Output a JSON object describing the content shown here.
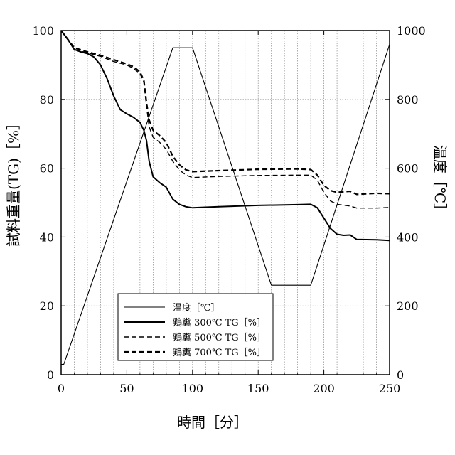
{
  "chart_data": {
    "type": "line",
    "xlabel": "時間［分］",
    "ylabel_left": "試料重量(TG)［%］",
    "ylabel_right": "温度［℃］",
    "xlim": [
      0,
      250
    ],
    "ylim_left": [
      0,
      100
    ],
    "ylim_right": [
      0,
      1000
    ],
    "x_ticks": [
      0,
      50,
      100,
      150,
      200,
      250
    ],
    "y_ticks_left": [
      0,
      20,
      40,
      60,
      80,
      100
    ],
    "y_ticks_right": [
      0,
      200,
      400,
      600,
      800,
      1000
    ],
    "grid": true,
    "legend_position": "bottom-left",
    "series": [
      {
        "name": "温度［℃］",
        "axis": "right",
        "style": "thin-solid",
        "points": [
          [
            0,
            30
          ],
          [
            2,
            30
          ],
          [
            85,
            950
          ],
          [
            100,
            950
          ],
          [
            160,
            260
          ],
          [
            190,
            260
          ],
          [
            250,
            960
          ]
        ]
      },
      {
        "name": "鶏糞 300℃ TG［%］",
        "axis": "left",
        "style": "thick-solid",
        "points": [
          [
            0,
            100
          ],
          [
            5,
            97.5
          ],
          [
            10,
            94.5
          ],
          [
            15,
            93.8
          ],
          [
            20,
            93.3
          ],
          [
            25,
            92.3
          ],
          [
            30,
            90
          ],
          [
            35,
            86
          ],
          [
            40,
            81
          ],
          [
            45,
            77
          ],
          [
            50,
            75.8
          ],
          [
            55,
            74.8
          ],
          [
            60,
            73.3
          ],
          [
            63,
            71
          ],
          [
            65,
            68
          ],
          [
            67,
            62
          ],
          [
            70,
            57.5
          ],
          [
            75,
            55.8
          ],
          [
            80,
            54.5
          ],
          [
            85,
            51
          ],
          [
            90,
            49.5
          ],
          [
            95,
            48.8
          ],
          [
            100,
            48.5
          ],
          [
            120,
            48.8
          ],
          [
            150,
            49.2
          ],
          [
            180,
            49.4
          ],
          [
            190,
            49.5
          ],
          [
            195,
            48.5
          ],
          [
            200,
            45.5
          ],
          [
            205,
            42.5
          ],
          [
            210,
            40.8
          ],
          [
            215,
            40.5
          ],
          [
            220,
            40.6
          ],
          [
            225,
            39.3
          ],
          [
            240,
            39.2
          ],
          [
            250,
            39
          ]
        ]
      },
      {
        "name": "鶏糞 500℃ TG［%］",
        "axis": "left",
        "style": "thin-dashed",
        "points": [
          [
            0,
            100
          ],
          [
            5,
            97.5
          ],
          [
            10,
            94.5
          ],
          [
            20,
            93.5
          ],
          [
            30,
            92.5
          ],
          [
            40,
            91
          ],
          [
            50,
            90
          ],
          [
            55,
            89
          ],
          [
            60,
            87.5
          ],
          [
            63,
            85
          ],
          [
            65,
            78
          ],
          [
            67,
            72
          ],
          [
            70,
            69
          ],
          [
            75,
            67.5
          ],
          [
            80,
            65.5
          ],
          [
            85,
            62
          ],
          [
            90,
            59.5
          ],
          [
            95,
            58
          ],
          [
            100,
            57.3
          ],
          [
            120,
            57.6
          ],
          [
            150,
            57.9
          ],
          [
            180,
            58
          ],
          [
            190,
            58
          ],
          [
            195,
            56.5
          ],
          [
            200,
            53
          ],
          [
            205,
            50.5
          ],
          [
            210,
            49.5
          ],
          [
            220,
            49
          ],
          [
            225,
            48.4
          ],
          [
            240,
            48.4
          ],
          [
            250,
            48.6
          ]
        ]
      },
      {
        "name": "鶏糞 700℃ TG［%］",
        "axis": "left",
        "style": "thick-dashed",
        "points": [
          [
            0,
            100
          ],
          [
            5,
            97.5
          ],
          [
            10,
            95
          ],
          [
            20,
            93.8
          ],
          [
            30,
            92.8
          ],
          [
            40,
            91.5
          ],
          [
            50,
            90.3
          ],
          [
            55,
            89.5
          ],
          [
            60,
            88
          ],
          [
            63,
            85.5
          ],
          [
            65,
            79
          ],
          [
            67,
            74
          ],
          [
            70,
            71
          ],
          [
            75,
            69.5
          ],
          [
            80,
            67.5
          ],
          [
            85,
            63.5
          ],
          [
            90,
            61
          ],
          [
            95,
            59.5
          ],
          [
            100,
            59
          ],
          [
            120,
            59.3
          ],
          [
            150,
            59.7
          ],
          [
            180,
            59.8
          ],
          [
            190,
            59.6
          ],
          [
            195,
            58
          ],
          [
            200,
            55
          ],
          [
            205,
            53.5
          ],
          [
            210,
            53
          ],
          [
            220,
            53.3
          ],
          [
            225,
            52.4
          ],
          [
            240,
            52.7
          ],
          [
            250,
            52.6
          ]
        ]
      }
    ]
  }
}
